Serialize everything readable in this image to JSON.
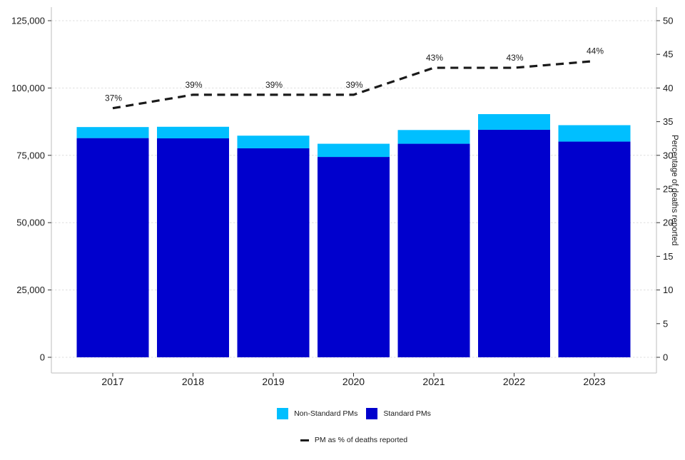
{
  "chart_data": {
    "type": "bar",
    "subtype": "stacked-bars-with-dashed-line-overlay",
    "title": "",
    "categories": [
      "2017",
      "2018",
      "2019",
      "2020",
      "2021",
      "2022",
      "2023"
    ],
    "series": [
      {
        "name": "Non-Standard PMs",
        "type": "bar",
        "stack_order": 2,
        "color": "#00BFFF",
        "values": [
          4100,
          4300,
          4700,
          4900,
          5100,
          5800,
          6100
        ]
      },
      {
        "name": "Standard PMs",
        "type": "bar",
        "stack_order": 1,
        "color": "#0000CD",
        "values": [
          81400,
          81300,
          77600,
          74400,
          79300,
          84500,
          80100
        ]
      },
      {
        "name": "PM as % of deaths reported",
        "type": "line",
        "axis": "right",
        "color": "#1A1A1A",
        "dashed": true,
        "values": [
          37,
          39,
          39,
          39,
          43,
          43,
          44
        ],
        "point_labels": [
          "37%",
          "39%",
          "39%",
          "39%",
          "43%",
          "43%",
          "44%"
        ]
      }
    ],
    "left_axis": {
      "title": "",
      "tick_values": [
        0,
        25000,
        50000,
        75000,
        100000,
        125000
      ],
      "tick_labels": [
        "0",
        "25,000",
        "50,000",
        "75,000",
        "100,000",
        "125,000"
      ],
      "min": 0,
      "max": 125000
    },
    "right_axis": {
      "title": "Percentage of deaths reported",
      "tick_values": [
        0,
        5,
        10,
        15,
        20,
        25,
        30,
        35,
        40,
        45,
        50
      ],
      "tick_labels": [
        "0",
        "5",
        "10",
        "15",
        "20",
        "25",
        "30",
        "35",
        "40",
        "45",
        "50"
      ],
      "min": 0,
      "max": 50
    },
    "grid": "horizontal-dashed",
    "legend_position": "bottom"
  },
  "colors": {
    "background": "#FFFFFF",
    "gridline": "#DEDEDE",
    "panel_border": "#C9C9C9",
    "tick_mark": "#333333",
    "text": "#1A1A1A"
  }
}
